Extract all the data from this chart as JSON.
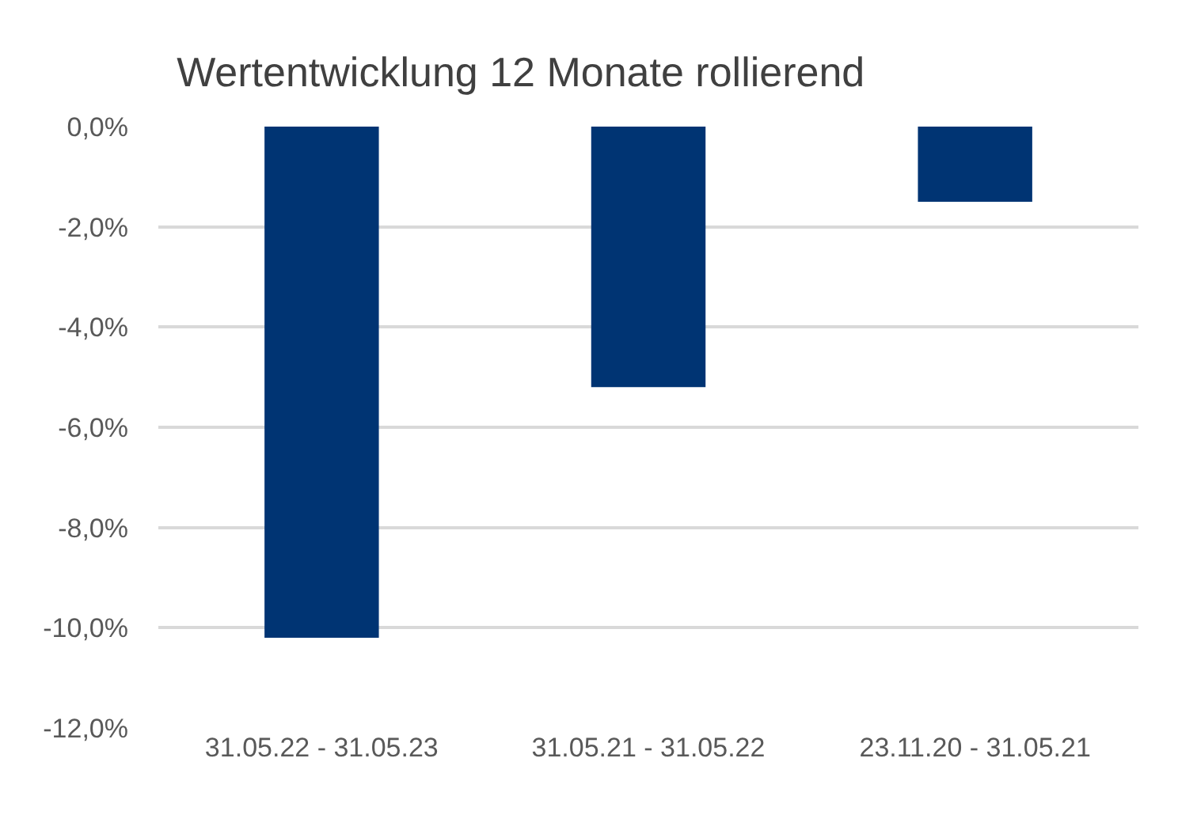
{
  "chart_data": {
    "type": "bar",
    "title": "Wertentwicklung 12 Monate rollierend",
    "categories": [
      "31.05.22 - 31.05.23",
      "31.05.21 - 31.05.22",
      "23.11.20 - 31.05.21"
    ],
    "values": [
      -10.2,
      -5.2,
      -1.5
    ],
    "color": "#003473",
    "ylim": [
      -12,
      0
    ],
    "yticks": [
      {
        "value": 0,
        "label": "0,0%"
      },
      {
        "value": -2,
        "label": "-2,0%"
      },
      {
        "value": -4,
        "label": "-4,0%"
      },
      {
        "value": -6,
        "label": "-6,0%"
      },
      {
        "value": -8,
        "label": "-8,0%"
      },
      {
        "value": -10,
        "label": "-10,0%"
      },
      {
        "value": -12,
        "label": "-12,0%"
      }
    ],
    "grid": "y"
  }
}
